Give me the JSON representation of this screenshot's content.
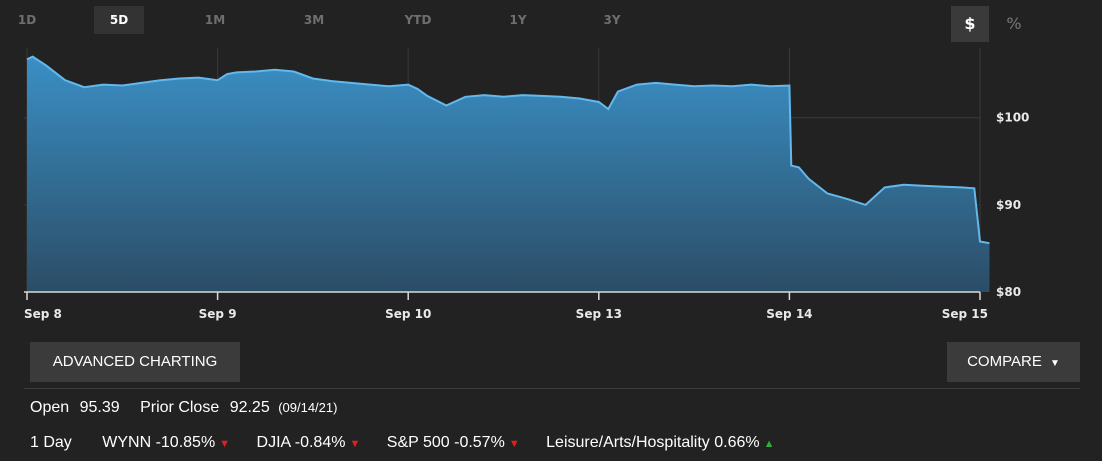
{
  "ranges": [
    "1D",
    "5D",
    "1M",
    "3M",
    "YTD",
    "1Y",
    "3Y"
  ],
  "active_range": "5D",
  "units": {
    "dollar": "$",
    "percent": "%"
  },
  "buttons": {
    "advanced": "ADVANCED CHARTING",
    "compare": "COMPARE"
  },
  "stats": {
    "open_label": "Open",
    "open_value": "95.39",
    "prior_label": "Prior Close",
    "prior_value": "92.25",
    "prior_date": "(09/14/21)"
  },
  "performance": {
    "period": "1 Day",
    "items": [
      {
        "text": "WYNN -10.85%",
        "dir": "down"
      },
      {
        "text": "DJIA -0.84%",
        "dir": "down"
      },
      {
        "text": "S&P 500 -0.57%",
        "dir": "down"
      },
      {
        "text": "Leisure/Arts/Hospitality 0.66%",
        "dir": "up"
      }
    ]
  },
  "colors": {
    "fill_top": "#3a8fc5",
    "fill_bottom": "#2b4d66",
    "line": "#63b8ec",
    "up": "#2fae3c",
    "down": "#e02020"
  },
  "chart_data": {
    "type": "area",
    "title": "",
    "xlabel": "",
    "ylabel": "",
    "ylim": [
      80,
      108
    ],
    "yticks": [
      "$100",
      "$90",
      "$80"
    ],
    "ytick_values": [
      100,
      90,
      80
    ],
    "categories": [
      "Sep 8",
      "Sep 9",
      "Sep 10",
      "Sep 13",
      "Sep 14",
      "Sep 15"
    ],
    "grid": true,
    "series": [
      {
        "x": [
          0,
          0.03,
          0.1,
          0.2,
          0.3,
          0.4,
          0.5,
          0.6,
          0.7,
          0.8,
          0.9,
          1.0,
          1.05,
          1.1,
          1.2,
          1.3,
          1.4,
          1.5,
          1.6,
          1.7,
          1.8,
          1.9,
          2.0,
          2.05,
          2.1,
          2.2,
          2.3,
          2.4,
          2.5,
          2.6,
          2.7,
          2.8,
          2.9,
          3.0,
          3.05,
          3.1,
          3.2,
          3.3,
          3.4,
          3.5,
          3.6,
          3.7,
          3.8,
          3.9,
          4.0,
          4.01,
          4.05,
          4.1,
          4.2,
          4.3,
          4.4,
          4.5,
          4.6,
          4.7,
          4.8,
          4.9,
          4.97,
          5.0,
          5.05
        ],
        "y": [
          106.7,
          107.0,
          106.0,
          104.3,
          103.5,
          103.8,
          103.7,
          104.0,
          104.3,
          104.5,
          104.6,
          104.3,
          105.0,
          105.2,
          105.3,
          105.5,
          105.3,
          104.5,
          104.2,
          104.0,
          103.8,
          103.6,
          103.8,
          103.3,
          102.5,
          101.4,
          102.4,
          102.6,
          102.4,
          102.6,
          102.5,
          102.4,
          102.2,
          101.8,
          101.0,
          103.0,
          103.8,
          104.0,
          103.8,
          103.6,
          103.7,
          103.6,
          103.8,
          103.6,
          103.7,
          94.5,
          94.3,
          93.0,
          91.3,
          90.7,
          90.0,
          92.0,
          92.3,
          92.2,
          92.1,
          92.0,
          91.9,
          85.8,
          85.6
        ]
      }
    ]
  }
}
